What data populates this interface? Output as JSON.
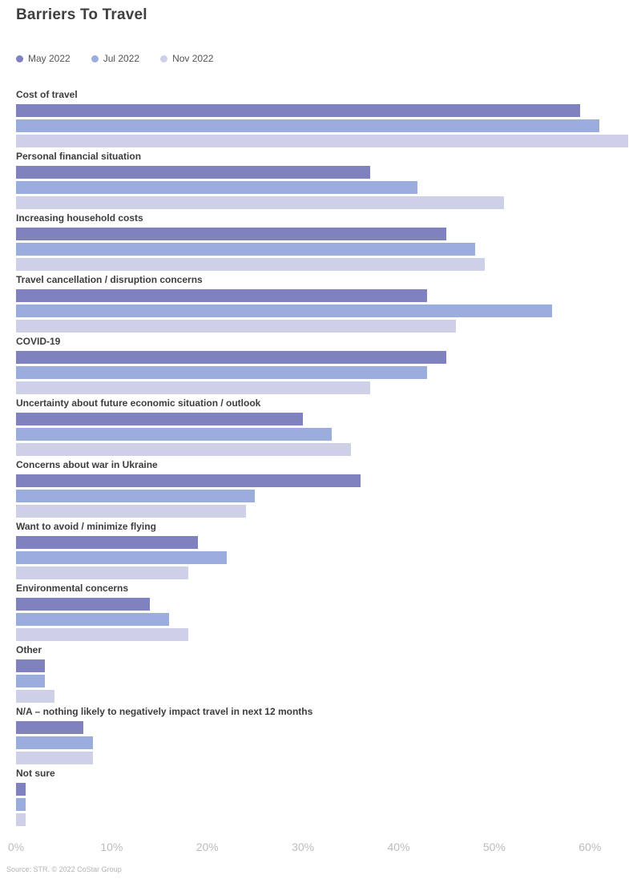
{
  "title": "Barriers To Travel",
  "source": "Source: STR. © 2022 CoStar Group",
  "colors": {
    "may": "#7F82BF",
    "jul": "#9AADDC",
    "nov": "#CED0E7",
    "title_text": "#3f3f3f",
    "category_text": "#3d3d3d",
    "axis_text": "#bcbcbc"
  },
  "chart_data": {
    "type": "bar",
    "orientation": "horizontal",
    "title": "Barriers To Travel",
    "categories": [
      "Cost of travel",
      "Personal financial situation",
      "Increasing household costs",
      "Travel cancellation / disruption concerns",
      "COVID-19",
      "Uncertainty about future economic situation / outlook",
      "Concerns about war in Ukraine",
      "Want to avoid / minimize flying",
      "Environmental concerns",
      "Other",
      "N/A – nothing likely to negatively impact travel in next 12 months",
      "Not sure"
    ],
    "series": [
      {
        "name": "May 2022",
        "color": "#7F82BF",
        "values": [
          59,
          37,
          45,
          43,
          45,
          30,
          36,
          19,
          14,
          3,
          7,
          1
        ]
      },
      {
        "name": "Jul 2022",
        "color": "#9AADDC",
        "values": [
          61,
          42,
          48,
          56,
          43,
          33,
          25,
          22,
          16,
          3,
          8,
          1
        ]
      },
      {
        "name": "Nov 2022",
        "color": "#CED0E7",
        "values": [
          64,
          51,
          49,
          46,
          37,
          35,
          24,
          18,
          18,
          4,
          8,
          1
        ]
      }
    ],
    "xlabel": "",
    "ylabel": "",
    "x_ticks": [
      "0%",
      "10%",
      "20%",
      "30%",
      "40%",
      "50%",
      "60%"
    ],
    "x_tick_values": [
      0,
      10,
      20,
      30,
      40,
      50,
      60
    ],
    "xlim": [
      0,
      64.5
    ],
    "values_unit": "percent",
    "grid": false,
    "legend_position": "top-left"
  }
}
